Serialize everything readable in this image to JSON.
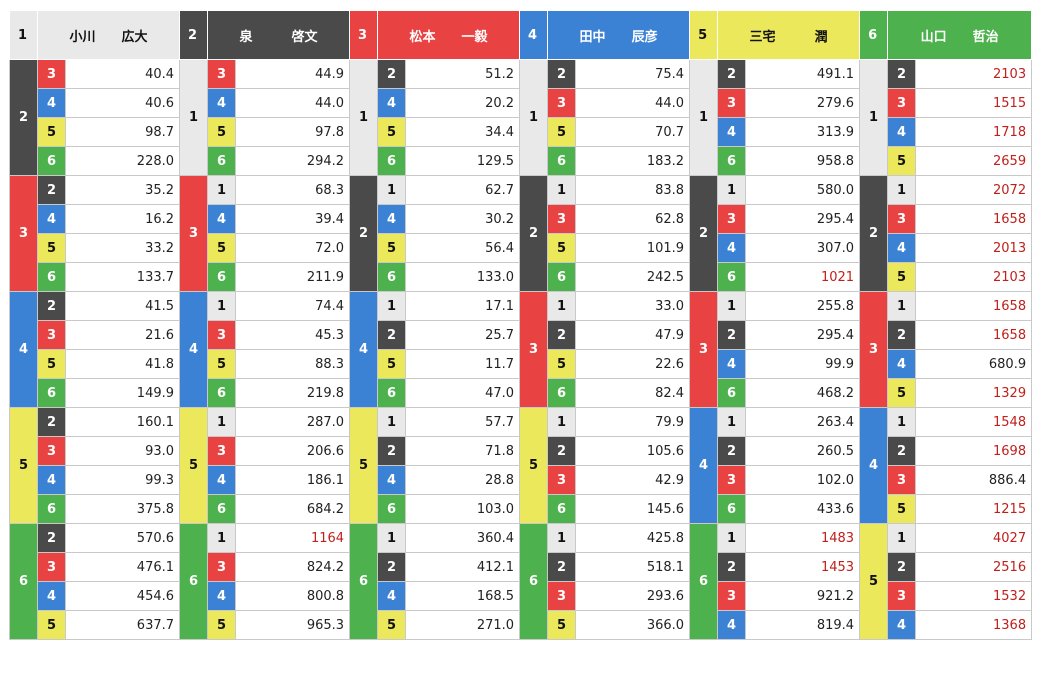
{
  "colors": {
    "1": "#e9e9e9",
    "2": "#4a4a4a",
    "3": "#e94242",
    "4": "#3b82d4",
    "5": "#ece85c",
    "6": "#4db24d",
    "high_odds_text": "#c0201c"
  },
  "racers": [
    {
      "num": "1",
      "surname": "小川",
      "given": "広大"
    },
    {
      "num": "2",
      "surname": "泉",
      "given": "啓文"
    },
    {
      "num": "3",
      "surname": "松本",
      "given": "一毅"
    },
    {
      "num": "4",
      "surname": "田中",
      "given": "辰彦"
    },
    {
      "num": "5",
      "surname": "三宅",
      "given": "潤"
    },
    {
      "num": "6",
      "surname": "山口",
      "given": "哲治"
    }
  ],
  "columns": [
    {
      "first": "1",
      "groups": [
        {
          "second": "2",
          "rows": [
            {
              "third": "3",
              "odds": "40.4"
            },
            {
              "third": "4",
              "odds": "40.6"
            },
            {
              "third": "5",
              "odds": "98.7"
            },
            {
              "third": "6",
              "odds": "228.0"
            }
          ]
        },
        {
          "second": "3",
          "rows": [
            {
              "third": "2",
              "odds": "35.2"
            },
            {
              "third": "4",
              "odds": "16.2"
            },
            {
              "third": "5",
              "odds": "33.2"
            },
            {
              "third": "6",
              "odds": "133.7"
            }
          ]
        },
        {
          "second": "4",
          "rows": [
            {
              "third": "2",
              "odds": "41.5"
            },
            {
              "third": "3",
              "odds": "21.6"
            },
            {
              "third": "5",
              "odds": "41.8"
            },
            {
              "third": "6",
              "odds": "149.9"
            }
          ]
        },
        {
          "second": "5",
          "rows": [
            {
              "third": "2",
              "odds": "160.1"
            },
            {
              "third": "3",
              "odds": "93.0"
            },
            {
              "third": "4",
              "odds": "99.3"
            },
            {
              "third": "6",
              "odds": "375.8"
            }
          ]
        },
        {
          "second": "6",
          "rows": [
            {
              "third": "2",
              "odds": "570.6"
            },
            {
              "third": "3",
              "odds": "476.1"
            },
            {
              "third": "4",
              "odds": "454.6"
            },
            {
              "third": "5",
              "odds": "637.7"
            }
          ]
        }
      ]
    },
    {
      "first": "2",
      "groups": [
        {
          "second": "1",
          "rows": [
            {
              "third": "3",
              "odds": "44.9"
            },
            {
              "third": "4",
              "odds": "44.0"
            },
            {
              "third": "5",
              "odds": "97.8"
            },
            {
              "third": "6",
              "odds": "294.2"
            }
          ]
        },
        {
          "second": "3",
          "rows": [
            {
              "third": "1",
              "odds": "68.3"
            },
            {
              "third": "4",
              "odds": "39.4"
            },
            {
              "third": "5",
              "odds": "72.0"
            },
            {
              "third": "6",
              "odds": "211.9"
            }
          ]
        },
        {
          "second": "4",
          "rows": [
            {
              "third": "1",
              "odds": "74.4"
            },
            {
              "third": "3",
              "odds": "45.3"
            },
            {
              "third": "5",
              "odds": "88.3"
            },
            {
              "third": "6",
              "odds": "219.8"
            }
          ]
        },
        {
          "second": "5",
          "rows": [
            {
              "third": "1",
              "odds": "287.0"
            },
            {
              "third": "3",
              "odds": "206.6"
            },
            {
              "third": "4",
              "odds": "186.1"
            },
            {
              "third": "6",
              "odds": "684.2"
            }
          ]
        },
        {
          "second": "6",
          "rows": [
            {
              "third": "1",
              "odds": "1164",
              "high": true
            },
            {
              "third": "3",
              "odds": "824.2"
            },
            {
              "third": "4",
              "odds": "800.8"
            },
            {
              "third": "5",
              "odds": "965.3"
            }
          ]
        }
      ]
    },
    {
      "first": "3",
      "groups": [
        {
          "second": "1",
          "rows": [
            {
              "third": "2",
              "odds": "51.2"
            },
            {
              "third": "4",
              "odds": "20.2"
            },
            {
              "third": "5",
              "odds": "34.4"
            },
            {
              "third": "6",
              "odds": "129.5"
            }
          ]
        },
        {
          "second": "2",
          "rows": [
            {
              "third": "1",
              "odds": "62.7"
            },
            {
              "third": "4",
              "odds": "30.2"
            },
            {
              "third": "5",
              "odds": "56.4"
            },
            {
              "third": "6",
              "odds": "133.0"
            }
          ]
        },
        {
          "second": "4",
          "rows": [
            {
              "third": "1",
              "odds": "17.1"
            },
            {
              "third": "2",
              "odds": "25.7"
            },
            {
              "third": "5",
              "odds": "11.7"
            },
            {
              "third": "6",
              "odds": "47.0"
            }
          ]
        },
        {
          "second": "5",
          "rows": [
            {
              "third": "1",
              "odds": "57.7"
            },
            {
              "third": "2",
              "odds": "71.8"
            },
            {
              "third": "4",
              "odds": "28.8"
            },
            {
              "third": "6",
              "odds": "103.0"
            }
          ]
        },
        {
          "second": "6",
          "rows": [
            {
              "third": "1",
              "odds": "360.4"
            },
            {
              "third": "2",
              "odds": "412.1"
            },
            {
              "third": "4",
              "odds": "168.5"
            },
            {
              "third": "5",
              "odds": "271.0"
            }
          ]
        }
      ]
    },
    {
      "first": "4",
      "groups": [
        {
          "second": "1",
          "rows": [
            {
              "third": "2",
              "odds": "75.4"
            },
            {
              "third": "3",
              "odds": "44.0"
            },
            {
              "third": "5",
              "odds": "70.7"
            },
            {
              "third": "6",
              "odds": "183.2"
            }
          ]
        },
        {
          "second": "2",
          "rows": [
            {
              "third": "1",
              "odds": "83.8"
            },
            {
              "third": "3",
              "odds": "62.8"
            },
            {
              "third": "5",
              "odds": "101.9"
            },
            {
              "third": "6",
              "odds": "242.5"
            }
          ]
        },
        {
          "second": "3",
          "rows": [
            {
              "third": "1",
              "odds": "33.0"
            },
            {
              "third": "2",
              "odds": "47.9"
            },
            {
              "third": "5",
              "odds": "22.6"
            },
            {
              "third": "6",
              "odds": "82.4"
            }
          ]
        },
        {
          "second": "5",
          "rows": [
            {
              "third": "1",
              "odds": "79.9"
            },
            {
              "third": "2",
              "odds": "105.6"
            },
            {
              "third": "3",
              "odds": "42.9"
            },
            {
              "third": "6",
              "odds": "145.6"
            }
          ]
        },
        {
          "second": "6",
          "rows": [
            {
              "third": "1",
              "odds": "425.8"
            },
            {
              "third": "2",
              "odds": "518.1"
            },
            {
              "third": "3",
              "odds": "293.6"
            },
            {
              "third": "5",
              "odds": "366.0"
            }
          ]
        }
      ]
    },
    {
      "first": "5",
      "groups": [
        {
          "second": "1",
          "rows": [
            {
              "third": "2",
              "odds": "491.1"
            },
            {
              "third": "3",
              "odds": "279.6"
            },
            {
              "third": "4",
              "odds": "313.9"
            },
            {
              "third": "6",
              "odds": "958.8"
            }
          ]
        },
        {
          "second": "2",
          "rows": [
            {
              "third": "1",
              "odds": "580.0"
            },
            {
              "third": "3",
              "odds": "295.4"
            },
            {
              "third": "4",
              "odds": "307.0"
            },
            {
              "third": "6",
              "odds": "1021",
              "high": true
            }
          ]
        },
        {
          "second": "3",
          "rows": [
            {
              "third": "1",
              "odds": "255.8"
            },
            {
              "third": "2",
              "odds": "295.4"
            },
            {
              "third": "4",
              "odds": "99.9"
            },
            {
              "third": "6",
              "odds": "468.2"
            }
          ]
        },
        {
          "second": "4",
          "rows": [
            {
              "third": "1",
              "odds": "263.4"
            },
            {
              "third": "2",
              "odds": "260.5"
            },
            {
              "third": "3",
              "odds": "102.0"
            },
            {
              "third": "6",
              "odds": "433.6"
            }
          ]
        },
        {
          "second": "6",
          "rows": [
            {
              "third": "1",
              "odds": "1483",
              "high": true
            },
            {
              "third": "2",
              "odds": "1453",
              "high": true
            },
            {
              "third": "3",
              "odds": "921.2"
            },
            {
              "third": "4",
              "odds": "819.4"
            }
          ]
        }
      ]
    },
    {
      "first": "6",
      "groups": [
        {
          "second": "1",
          "rows": [
            {
              "third": "2",
              "odds": "2103",
              "high": true
            },
            {
              "third": "3",
              "odds": "1515",
              "high": true
            },
            {
              "third": "4",
              "odds": "1718",
              "high": true
            },
            {
              "third": "5",
              "odds": "2659",
              "high": true
            }
          ]
        },
        {
          "second": "2",
          "rows": [
            {
              "third": "1",
              "odds": "2072",
              "high": true
            },
            {
              "third": "3",
              "odds": "1658",
              "high": true
            },
            {
              "third": "4",
              "odds": "2013",
              "high": true
            },
            {
              "third": "5",
              "odds": "2103",
              "high": true
            }
          ]
        },
        {
          "second": "3",
          "rows": [
            {
              "third": "1",
              "odds": "1658",
              "high": true
            },
            {
              "third": "2",
              "odds": "1658",
              "high": true
            },
            {
              "third": "4",
              "odds": "680.9"
            },
            {
              "third": "5",
              "odds": "1329",
              "high": true
            }
          ]
        },
        {
          "second": "4",
          "rows": [
            {
              "third": "1",
              "odds": "1548",
              "high": true
            },
            {
              "third": "2",
              "odds": "1698",
              "high": true
            },
            {
              "third": "3",
              "odds": "886.4"
            },
            {
              "third": "5",
              "odds": "1215",
              "high": true
            }
          ]
        },
        {
          "second": "5",
          "rows": [
            {
              "third": "1",
              "odds": "4027",
              "high": true
            },
            {
              "third": "2",
              "odds": "2516",
              "high": true
            },
            {
              "third": "3",
              "odds": "1532",
              "high": true
            },
            {
              "third": "4",
              "odds": "1368",
              "high": true
            }
          ]
        }
      ]
    }
  ]
}
